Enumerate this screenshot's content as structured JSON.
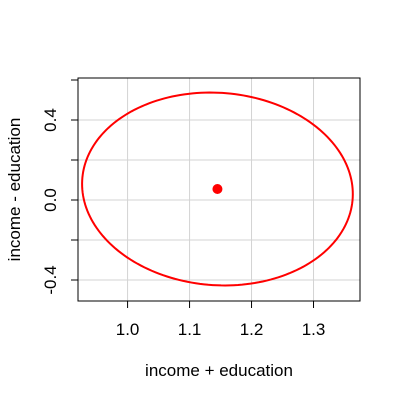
{
  "chart_data": {
    "type": "scatter",
    "title": "",
    "xlabel": "income  + education",
    "ylabel": "income - education",
    "xlim": [
      0.92,
      1.375
    ],
    "ylim": [
      -0.505,
      0.61
    ],
    "x_ticks": [
      1.0,
      1.1,
      1.2,
      1.3
    ],
    "x_tick_labels": [
      "1.0",
      "1.1",
      "1.2",
      "1.3"
    ],
    "y_ticks": [
      -0.4,
      0.0,
      0.4
    ],
    "y_tick_labels": [
      "-0.4",
      "0.0",
      "0.4"
    ],
    "y_minor_ticks": [
      -0.4,
      -0.2,
      0.0,
      0.2,
      0.4,
      0.6
    ],
    "grid_x": [
      1.0,
      1.1,
      1.2,
      1.3
    ],
    "grid_y": [
      -0.4,
      -0.2,
      0.0,
      0.2,
      0.4
    ],
    "grid": true,
    "series": [
      {
        "kind": "point",
        "x": [
          1.145
        ],
        "y": [
          0.055
        ],
        "color": "#ff0000"
      },
      {
        "kind": "ellipse",
        "center": [
          1.145,
          0.055
        ],
        "semi_axis_1": [
          0.21,
          0.108
        ],
        "semi_axis_2": [
          -0.06,
          0.47
        ],
        "color": "#ff0000"
      }
    ]
  }
}
